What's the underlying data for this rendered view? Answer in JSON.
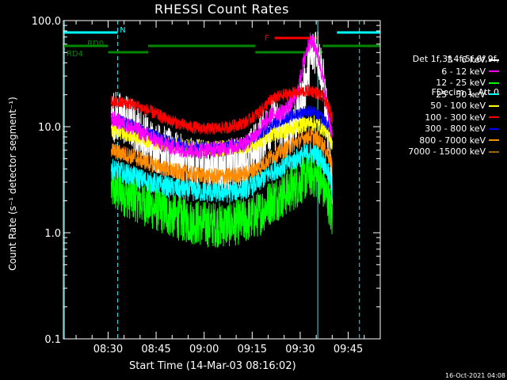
{
  "chart_data": {
    "type": "line",
    "title": "RHESSI Count Rates",
    "xlabel": "Start Time (14-Mar-03 08:16:02)",
    "ylabel": "Count Rate (s⁻¹ detector segment⁻¹)",
    "y_scale": "log",
    "ylim": [
      0.1,
      100.0
    ],
    "y_ticks": [
      "0.1",
      "1.0",
      "10.0",
      "100.0"
    ],
    "x_ticks": [
      "08:30",
      "08:45",
      "09:00",
      "09:15",
      "09:30",
      "09:45"
    ],
    "xlim": [
      "08:16:02",
      "09:55:00"
    ],
    "x_data_range": [
      "08:31:00",
      "09:40:30"
    ],
    "legend_header": [
      "Det 1f,3f,4f,5f,6f,9f,",
      "FDecim 1, Att 0"
    ],
    "legend_placement": "right",
    "series": [
      {
        "name": "3 - 6 keV",
        "color": "#ffffff",
        "x": [
          "08:31",
          "08:37",
          "08:43",
          "08:49",
          "08:55",
          "09:01",
          "09:07",
          "09:13",
          "09:17",
          "09:21",
          "09:25",
          "09:29",
          "09:31",
          "09:33",
          "09:35",
          "09:37",
          "09:39",
          "09:40"
        ],
        "y": [
          13,
          11,
          7,
          5.5,
          4.5,
          4.2,
          4.3,
          4.8,
          7,
          11,
          9,
          12,
          20,
          40,
          60,
          30,
          8,
          3
        ]
      },
      {
        "name": "6 - 12 keV",
        "color": "#ff00ff",
        "x": [
          "08:31",
          "08:37",
          "08:43",
          "08:49",
          "08:55",
          "09:01",
          "09:07",
          "09:13",
          "09:17",
          "09:21",
          "09:25",
          "09:29",
          "09:31",
          "09:33",
          "09:35",
          "09:37",
          "09:39",
          "09:40"
        ],
        "y": [
          12,
          10,
          8,
          6.5,
          6,
          6,
          6.3,
          7,
          9,
          13,
          14,
          20,
          40,
          65,
          55,
          30,
          12,
          8
        ]
      },
      {
        "name": "12 - 25 keV",
        "color": "#00ff00",
        "x": [
          "08:31",
          "08:37",
          "08:43",
          "08:49",
          "08:55",
          "09:01",
          "09:07",
          "09:13",
          "09:17",
          "09:21",
          "09:25",
          "09:29",
          "09:31",
          "09:33",
          "09:35",
          "09:37",
          "09:39",
          "09:40"
        ],
        "y": [
          2.6,
          2.2,
          1.8,
          1.5,
          1.3,
          1.2,
          1.2,
          1.3,
          1.5,
          2.0,
          2.3,
          2.8,
          3.2,
          3.6,
          3.4,
          2.8,
          2.0,
          1.3
        ]
      },
      {
        "name": "25 - 50 keV",
        "color": "#00ffff",
        "x": [
          "08:31",
          "08:37",
          "08:43",
          "08:49",
          "08:55",
          "09:01",
          "09:07",
          "09:13",
          "09:17",
          "09:21",
          "09:25",
          "09:29",
          "09:31",
          "09:33",
          "09:35",
          "09:37",
          "09:39",
          "09:40"
        ],
        "y": [
          4.0,
          3.5,
          3.0,
          2.7,
          2.5,
          2.4,
          2.4,
          2.6,
          3.0,
          3.8,
          4.3,
          5.0,
          5.4,
          5.7,
          5.5,
          4.8,
          3.5,
          2.5
        ]
      },
      {
        "name": "50 - 100 keV",
        "color": "#ffff00",
        "x": [
          "08:31",
          "08:37",
          "08:43",
          "08:49",
          "08:55",
          "09:01",
          "09:07",
          "09:13",
          "09:17",
          "09:21",
          "09:25",
          "09:29",
          "09:31",
          "09:33",
          "09:35",
          "09:37",
          "09:39",
          "09:40"
        ],
        "y": [
          9.5,
          8.5,
          7.5,
          6.8,
          6.4,
          6.2,
          6.3,
          6.6,
          7.2,
          8.5,
          9.2,
          10,
          10.5,
          11,
          10.6,
          9.8,
          8.5,
          7
        ]
      },
      {
        "name": "100 - 300 keV",
        "color": "#ff0000",
        "x": [
          "08:31",
          "08:37",
          "08:43",
          "08:49",
          "08:55",
          "09:01",
          "09:07",
          "09:13",
          "09:17",
          "09:21",
          "09:25",
          "09:29",
          "09:31",
          "09:33",
          "09:35",
          "09:37",
          "09:39",
          "09:40"
        ],
        "y": [
          17,
          16.5,
          14,
          11.5,
          10,
          9.5,
          9.8,
          11,
          13.5,
          18,
          20,
          21,
          21.5,
          22,
          21,
          19,
          15,
          12
        ]
      },
      {
        "name": "300 - 800 keV",
        "color": "#0000ff",
        "x": [
          "08:31",
          "08:37",
          "08:43",
          "08:49",
          "08:55",
          "09:01",
          "09:07",
          "09:13",
          "09:17",
          "09:21",
          "09:25",
          "09:29",
          "09:31",
          "09:33",
          "09:35",
          "09:37",
          "09:39",
          "09:40"
        ],
        "y": [
          12,
          10.5,
          8.5,
          7.2,
          6.5,
          6.3,
          6.4,
          7.0,
          8.2,
          10.5,
          12,
          13.2,
          13.8,
          14,
          13.2,
          12,
          10,
          8
        ]
      },
      {
        "name": "800 - 7000 keV",
        "color": "#ff8c00",
        "x": [
          "08:31",
          "08:37",
          "08:43",
          "08:49",
          "08:55",
          "09:01",
          "09:07",
          "09:13",
          "09:17",
          "09:21",
          "09:25",
          "09:29",
          "09:31",
          "09:33",
          "09:35",
          "09:37",
          "09:39",
          "09:40"
        ],
        "y": [
          6.0,
          5.3,
          4.5,
          3.9,
          3.6,
          3.4,
          3.4,
          3.6,
          4.1,
          5.2,
          6.0,
          7.2,
          7.8,
          8.2,
          7.8,
          6.8,
          5.3,
          4.0
        ]
      },
      {
        "name": "7000 - 15000 keV",
        "color": "#996600",
        "x": [],
        "y": []
      }
    ],
    "annotations": {
      "attenuator_bars": [
        {
          "label": "N",
          "color": "#00ffff",
          "segments": [
            [
              "08:16:02",
              "08:33:00"
            ],
            [
              "09:41:30",
              "09:55:00"
            ]
          ]
        },
        {
          "label": "F",
          "color": "#ff0000",
          "segments": [
            [
              "09:22:00",
              "09:35:30"
            ]
          ]
        },
        {
          "label": "RD0",
          "color": "#008800",
          "segments": [
            [
              "08:16:02",
              "08:30:00"
            ],
            [
              "08:42:30",
              "09:16:00"
            ],
            [
              "09:37:00",
              "09:55:00"
            ]
          ]
        },
        {
          "label": "RD4",
          "color": "#008800",
          "segments": [
            [
              "08:30:00",
              "08:42:30"
            ],
            [
              "09:16:00",
              "09:37:00"
            ]
          ]
        }
      ],
      "vlines": [
        {
          "time": "08:16:20",
          "color": "#00ffff",
          "style": "solid"
        },
        {
          "time": "08:33:00",
          "color": "#00ffff",
          "style": "dashed"
        },
        {
          "time": "09:35:30",
          "color": "#00ffff",
          "style": "solid"
        },
        {
          "time": "09:48:30",
          "color": "#00ffff",
          "style": "dashed"
        }
      ]
    },
    "grid": false
  },
  "footer_timestamp": "16-Oct-2021 04:08"
}
